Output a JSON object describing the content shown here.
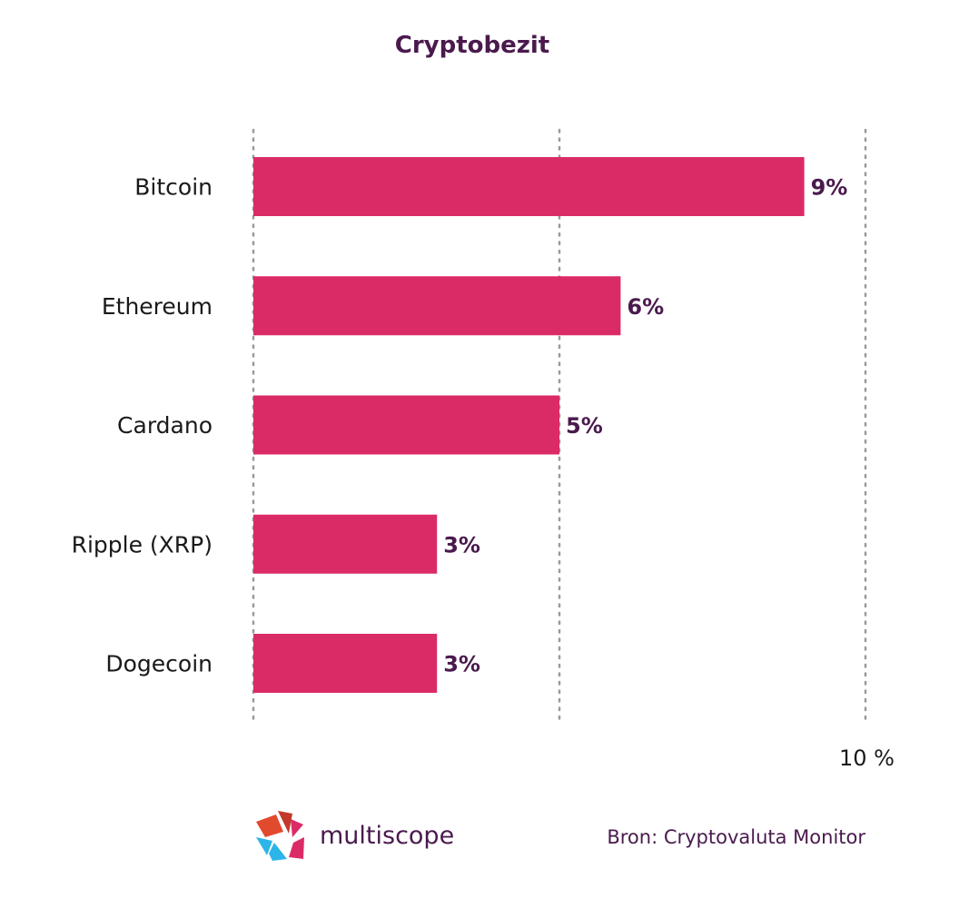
{
  "chart_data": {
    "type": "bar",
    "orientation": "horizontal",
    "title": "Cryptobezit",
    "categories": [
      "Bitcoin",
      "Ethereum",
      "Cardano",
      "Ripple (XRP)",
      "Dogecoin"
    ],
    "values": [
      9,
      6,
      5,
      3,
      3
    ],
    "value_labels": [
      "9%",
      "6%",
      "5%",
      "3%",
      "3%"
    ],
    "xlim": [
      0,
      10
    ],
    "x_tick_label": "10 %",
    "grid": "vertical dotted",
    "bar_color": "#db2b67",
    "xlabel": "",
    "ylabel": ""
  },
  "source": "Bron: Cryptovaluta Monitor",
  "logo": {
    "name": "multiscope",
    "colors": [
      "#e24a2e",
      "#db2b67",
      "#2bb5e8",
      "#4a1a4d"
    ]
  },
  "colors": {
    "title": "#4a1a4d",
    "value_label": "#4a1a4d",
    "grid": "#9a9a9a",
    "text": "#1a1a1a"
  }
}
